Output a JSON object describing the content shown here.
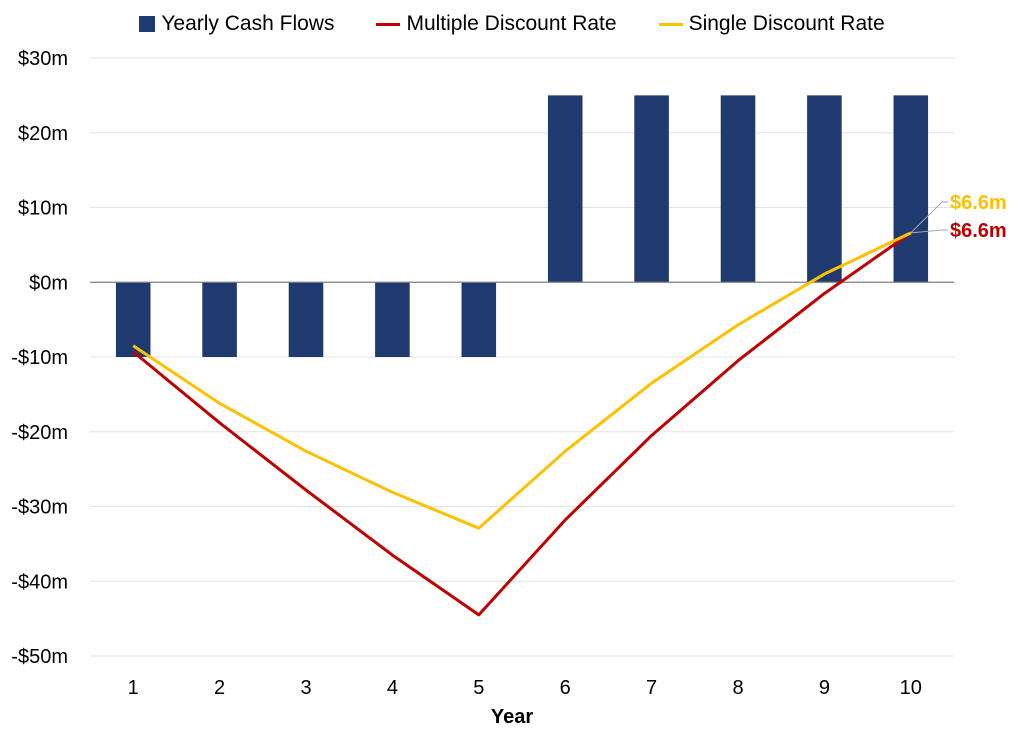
{
  "chart_data": {
    "type": "bar",
    "xlabel": "Year",
    "ylabel": "",
    "categories": [
      "1",
      "2",
      "3",
      "4",
      "5",
      "6",
      "7",
      "8",
      "9",
      "10"
    ],
    "ylim": [
      -50,
      30
    ],
    "yticks": [
      30,
      20,
      10,
      0,
      -10,
      -20,
      -30,
      -40,
      -50
    ],
    "ytick_labels": [
      "$30m",
      "$20m",
      "$10m",
      "$0m",
      "-$10m",
      "-$20m",
      "-$30m",
      "-$40m",
      "-$50m"
    ],
    "grid": true,
    "legend_position": "top-center",
    "series": [
      {
        "name": "Yearly Cash Flows",
        "kind": "bar",
        "color": "#1f3a6e",
        "values": [
          -10,
          -10,
          -10,
          -10,
          -10,
          25,
          25,
          25,
          25,
          25
        ]
      },
      {
        "name": "Multiple Discount Rate",
        "kind": "line",
        "color": "#c00000",
        "values": [
          -9.3,
          -18.8,
          -27.8,
          -36.5,
          -44.5,
          -31.8,
          -20.5,
          -10.5,
          -1.5,
          6.6
        ]
      },
      {
        "name": "Single Discount Rate",
        "kind": "line",
        "color": "#ffc000",
        "values": [
          -8.5,
          -16.2,
          -22.6,
          -28.1,
          -32.9,
          -22.6,
          -13.5,
          -5.7,
          1.1,
          6.6
        ]
      }
    ],
    "annotations": [
      {
        "text": "$6.6m",
        "series": "Single Discount Rate",
        "color": "#ffc000"
      },
      {
        "text": "$6.6m",
        "series": "Multiple Discount Rate",
        "color": "#c00000"
      }
    ]
  }
}
